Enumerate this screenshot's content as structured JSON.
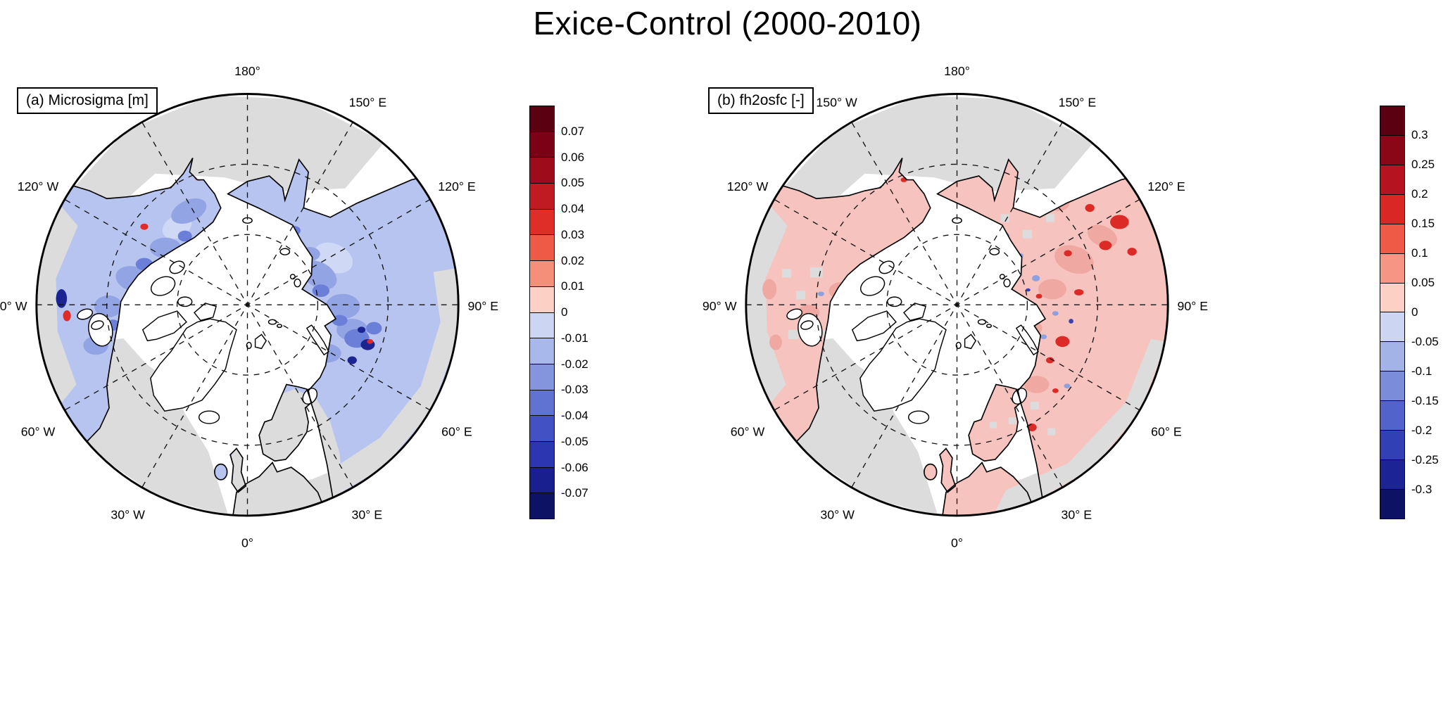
{
  "figure_title": "Exice-Control (2000-2010)",
  "lon_labels": [
    "180°",
    "150° W",
    "150° E",
    "120° W",
    "120° E",
    "90° W",
    "90° E",
    "60° W",
    "60° E",
    "30° W",
    "30° E",
    "0°"
  ],
  "panels": [
    {
      "label": "(a) Microsigma [m]",
      "colorbar": {
        "ticks": [
          "0.07",
          "0.06",
          "0.05",
          "0.04",
          "0.03",
          "0.02",
          "0.01",
          "0",
          "-0.01",
          "-0.02",
          "-0.03",
          "-0.04",
          "-0.05",
          "-0.06",
          "-0.07"
        ],
        "segment_colors_top_to_bottom": [
          "#5a0011",
          "#7c0016",
          "#9e0c1c",
          "#c01a22",
          "#df2d27",
          "#ee5a45",
          "#f68f7a",
          "#fcd0c4",
          "#ccd6f2",
          "#a9b8ea",
          "#8495de",
          "#6173d2",
          "#4252c4",
          "#2b36b0",
          "#191f8e",
          "#0d1264"
        ]
      }
    },
    {
      "label": "(b) fh2osfc [-]",
      "colorbar": {
        "ticks": [
          "0.3",
          "0.25",
          "0.2",
          "0.15",
          "0.1",
          "0.05",
          "0",
          "-0.05",
          "-0.1",
          "-0.15",
          "-0.2",
          "-0.25",
          "-0.3"
        ],
        "segment_colors_top_to_bottom": [
          "#5a0011",
          "#8a0718",
          "#b5131f",
          "#d92725",
          "#ee5a45",
          "#f79584",
          "#fcd0c4",
          "#ccd6f2",
          "#a3b3e8",
          "#7b8dda",
          "#5263cb",
          "#3240b6",
          "#1c2394",
          "#0d1264"
        ]
      }
    }
  ],
  "map_colors": {
    "no_data_gray": "#dcdcdc",
    "land_tint_a": "#b7c4f0",
    "land_tint_b": "#f7c3be",
    "ocean_white": "#ffffff"
  },
  "chart_data": {
    "type": "heatmap",
    "title": "Exice-Control (2000-2010)",
    "panels": [
      {
        "label": "(a) Microsigma [m]",
        "units": "m",
        "projection": "north-polar stereographic, 0° at bottom, 180° at top",
        "levels": [
          -0.07,
          -0.06,
          -0.05,
          -0.04,
          -0.03,
          -0.02,
          -0.01,
          0,
          0.01,
          0.02,
          0.03,
          0.04,
          0.05,
          0.06,
          0.07
        ],
        "legend_position": "right vertical colorbar",
        "dominant_signal": "weak negative (light blue) anomalies over most northern land, strongest negative cluster in western Siberia; isolated positive (red) spots near Bering Strait, northwest Canada, Great Lakes and western Siberia; gray = no data / out of domain"
      },
      {
        "label": "(b) fh2osfc [-]",
        "units": "-",
        "projection": "north-polar stereographic, 0° at bottom, 180° at top",
        "levels": [
          -0.3,
          -0.25,
          -0.2,
          -0.15,
          -0.1,
          -0.05,
          0,
          0.05,
          0.1,
          0.15,
          0.2,
          0.25,
          0.3
        ],
        "legend_position": "right vertical colorbar",
        "dominant_signal": "weak positive (light pink) anomalies over most northern land, stronger positive spots in eastern Siberia, Urals and Baltic region, scattered weak negative specks; gray = no data / out of domain"
      }
    ]
  }
}
